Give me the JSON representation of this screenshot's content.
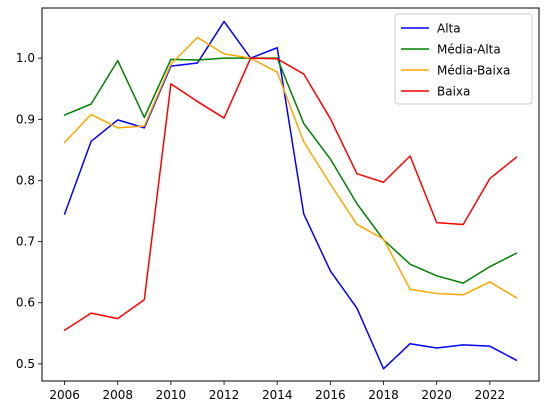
{
  "chart_data": {
    "type": "line",
    "title": "",
    "xlabel": "",
    "ylabel": "",
    "xlim": [
      2005.15,
      2023.85
    ],
    "ylim": [
      0.472,
      1.082
    ],
    "grid": false,
    "legend_position": "top-right",
    "x": [
      2006,
      2007,
      2008,
      2009,
      2010,
      2011,
      2012,
      2013,
      2014,
      2015,
      2016,
      2017,
      2018,
      2019,
      2020,
      2021,
      2022,
      2023
    ],
    "xticks": [
      2006,
      2008,
      2010,
      2012,
      2014,
      2016,
      2018,
      2020,
      2022
    ],
    "xtick_labels": [
      "2006",
      "2008",
      "2010",
      "2012",
      "2014",
      "2016",
      "2018",
      "2020",
      "2022"
    ],
    "yticks": [
      0.5,
      0.6,
      0.7,
      0.8,
      0.9,
      1.0
    ],
    "ytick_labels": [
      "0.5",
      "0.6",
      "0.7",
      "0.8",
      "0.9",
      "1.0"
    ],
    "series": [
      {
        "name": "Alta",
        "color": "#0000ff",
        "values": [
          0.745,
          0.864,
          0.899,
          0.886,
          0.987,
          0.992,
          1.06,
          1.0,
          1.017,
          0.745,
          0.652,
          0.591,
          0.492,
          0.533,
          0.526,
          0.531,
          0.529,
          0.506
        ]
      },
      {
        "name": "Média-Alta",
        "color": "#008000",
        "values": [
          0.907,
          0.925,
          0.996,
          0.903,
          0.998,
          0.997,
          1.0,
          1.0,
          1.0,
          0.893,
          0.835,
          0.762,
          0.703,
          0.663,
          0.644,
          0.632,
          0.659,
          0.681
        ]
      },
      {
        "name": "Média-Baixa",
        "color": "#ffa500",
        "values": [
          0.862,
          0.908,
          0.886,
          0.889,
          0.99,
          1.034,
          1.007,
          1.0,
          0.977,
          0.863,
          0.794,
          0.728,
          0.704,
          0.622,
          0.615,
          0.613,
          0.634,
          0.608
        ]
      },
      {
        "name": "Baixa",
        "color": "#ff0000",
        "values": [
          0.555,
          0.583,
          0.574,
          0.605,
          0.958,
          0.929,
          0.902,
          1.0,
          0.999,
          0.974,
          0.901,
          0.811,
          0.797,
          0.84,
          0.731,
          0.728,
          0.803,
          0.838
        ]
      }
    ]
  }
}
